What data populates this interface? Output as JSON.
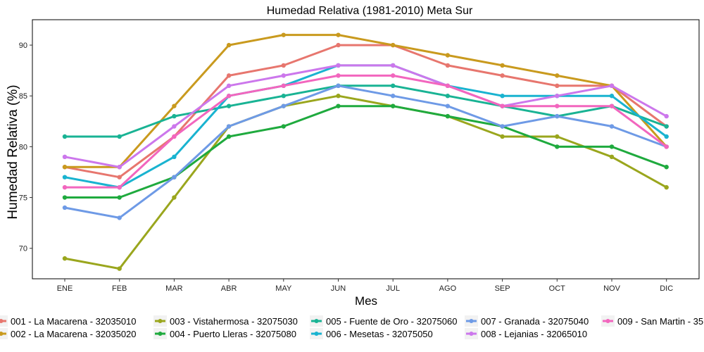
{
  "chart_data": {
    "type": "line",
    "title": "Humedad Relativa (1981-2010)  Meta Sur",
    "xlabel": "Mes",
    "ylabel": "Humedad Relativa  (%)",
    "categories": [
      "ENE",
      "FEB",
      "MAR",
      "ABR",
      "MAY",
      "JUN",
      "JUL",
      "AGO",
      "SEP",
      "OCT",
      "NOV",
      "DIC"
    ],
    "ylim": [
      67,
      92.5
    ],
    "yticks": [
      70,
      75,
      80,
      85,
      90
    ],
    "grid": false,
    "legend_position": "bottom",
    "series": [
      {
        "name": "001 - La Macarena - 32035010",
        "color": "#E7766E",
        "values": [
          78,
          77,
          81,
          87,
          88,
          90,
          90,
          88,
          87,
          86,
          86,
          82
        ]
      },
      {
        "name": "002 - La Macarena - 32035020",
        "color": "#C99A1E",
        "values": [
          78,
          78,
          84,
          90,
          91,
          91,
          90,
          89,
          88,
          87,
          86,
          80
        ]
      },
      {
        "name": "003 - Vistahermosa - 32075030",
        "color": "#9AA61D",
        "values": [
          69,
          68,
          75,
          82,
          84,
          85,
          84,
          83,
          81,
          81,
          79,
          76
        ]
      },
      {
        "name": "004 - Puerto Lleras - 32075080",
        "color": "#1FAA3E",
        "values": [
          75,
          75,
          77,
          81,
          82,
          84,
          84,
          83,
          82,
          80,
          80,
          78
        ]
      },
      {
        "name": "005 - Fuente de Oro - 32075060",
        "color": "#19B394",
        "values": [
          81,
          81,
          83,
          84,
          85,
          86,
          86,
          85,
          84,
          83,
          84,
          82
        ]
      },
      {
        "name": "006 - Mesetas - 32075050",
        "color": "#19B3D0",
        "values": [
          77,
          76,
          79,
          85,
          86,
          88,
          88,
          86,
          85,
          85,
          85,
          81
        ]
      },
      {
        "name": "007 - Granada - 32075040",
        "color": "#6E9AE6",
        "values": [
          74,
          73,
          77,
          82,
          84,
          86,
          85,
          84,
          82,
          83,
          82,
          80
        ]
      },
      {
        "name": "008 - Lejanias - 32065010",
        "color": "#CC77EC",
        "values": [
          79,
          78,
          82,
          86,
          87,
          88,
          88,
          86,
          84,
          85,
          86,
          83
        ]
      },
      {
        "name": "009 - San Martin - 35",
        "color": "#F266BE",
        "values": [
          76,
          76,
          81,
          85,
          86,
          87,
          87,
          86,
          84,
          84,
          84,
          80
        ]
      }
    ]
  }
}
